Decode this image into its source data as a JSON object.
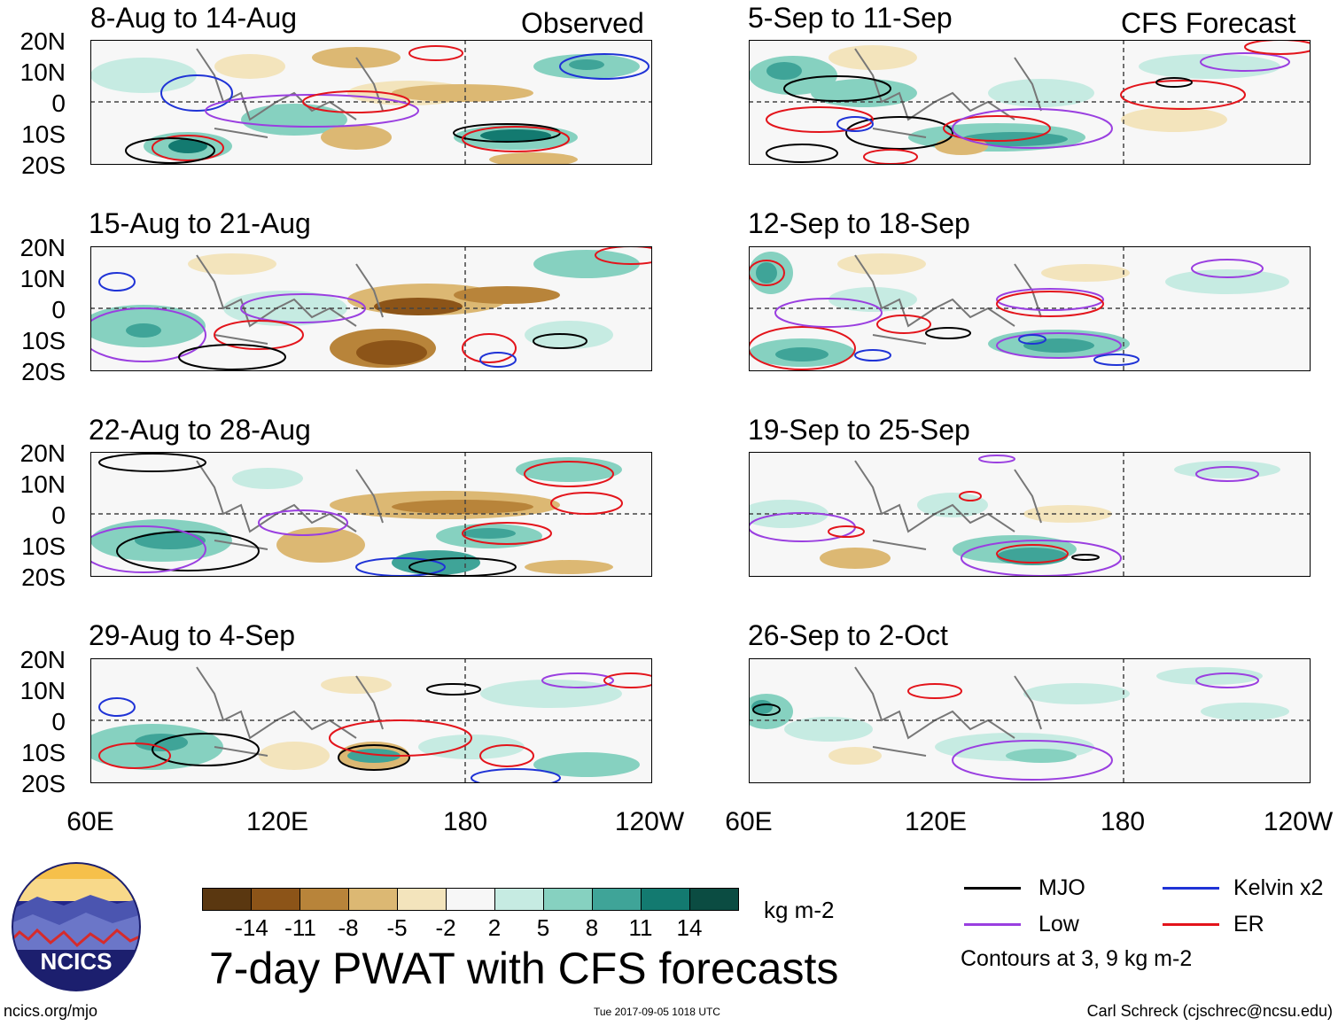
{
  "left_corner_label": "Observed",
  "right_corner_label": "CFS Forecast",
  "panels_left": [
    {
      "title": "8-Aug to 14-Aug"
    },
    {
      "title": "15-Aug to 21-Aug"
    },
    {
      "title": "22-Aug to 28-Aug"
    },
    {
      "title": "29-Aug to 4-Sep"
    }
  ],
  "panels_right": [
    {
      "title": "5-Sep to 11-Sep"
    },
    {
      "title": "12-Sep to 18-Sep"
    },
    {
      "title": "19-Sep to 25-Sep"
    },
    {
      "title": "26-Sep to 2-Oct"
    }
  ],
  "lat_labels": [
    "20N",
    "10N",
    "0",
    "10S",
    "20S"
  ],
  "lon_labels": [
    "60E",
    "120E",
    "180",
    "120W"
  ],
  "colorbar": {
    "colors": [
      "#5a3710",
      "#8c5418",
      "#b8843a",
      "#dcb873",
      "#f3e4bc",
      "#f7f7f7",
      "#c6ebe2",
      "#86d1c0",
      "#3fa498",
      "#137a70",
      "#0b4c42"
    ],
    "labels": [
      "-14",
      "-11",
      "-8",
      "-5",
      "-2",
      "2",
      "5",
      "8",
      "11",
      "14"
    ],
    "units": "kg m-2"
  },
  "title": "7-day PWAT with CFS forecasts",
  "logo_text": "NCICS",
  "legend": {
    "items": [
      {
        "label": "MJO",
        "color": "#000000"
      },
      {
        "label": "Kelvin x2",
        "color": "#1f33d6"
      },
      {
        "label": "Low",
        "color": "#9a3fe0"
      },
      {
        "label": "ER",
        "color": "#e3141b"
      }
    ],
    "note": "Contours at 3, 9 kg m-2"
  },
  "footer": {
    "url": "ncics.org/mjo",
    "timestamp": "Tue 2017-09-05 1018 UTC",
    "author": "Carl Schreck (cjschrec@ncsu.edu)"
  }
}
